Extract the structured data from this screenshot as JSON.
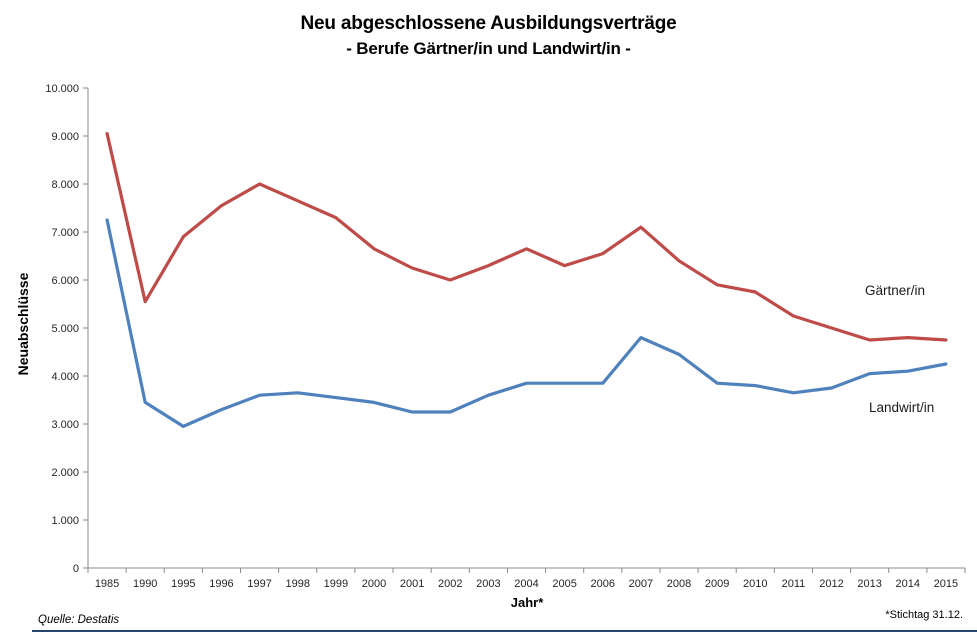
{
  "page": {
    "source": "Quelle: Destatis",
    "footnote": "*Stichtag 31.12."
  },
  "chart_data": {
    "type": "line",
    "title": "Neu abgeschlossene Ausbildungsverträge",
    "subtitle": "- Berufe Gärtner/in und Landwirt/in -",
    "xlabel": "Jahr*",
    "ylabel": "Neuabschlüsse",
    "ylim": [
      0,
      10000
    ],
    "ytick_step": 1000,
    "ytick_labels": [
      "0",
      "1.000",
      "2.000",
      "3.000",
      "4.000",
      "5.000",
      "6.000",
      "7.000",
      "8.000",
      "9.000",
      "10.000"
    ],
    "grid": false,
    "legend_position": "inline-right-of-lines",
    "axis_color": "#8a8a8a",
    "categories": [
      "1985",
      "1990",
      "1995",
      "1996",
      "1997",
      "1998",
      "1999",
      "2000",
      "2001",
      "2002",
      "2003",
      "2004",
      "2005",
      "2006",
      "2007",
      "2008",
      "2009",
      "2010",
      "2011",
      "2012",
      "2013",
      "2014",
      "2015"
    ],
    "series": [
      {
        "name": "Gärtner/in",
        "color": "#be4b48",
        "values": [
          9050,
          5550,
          6900,
          7550,
          8000,
          7650,
          7300,
          6650,
          6250,
          6000,
          6300,
          6650,
          6300,
          6550,
          7100,
          6400,
          5900,
          5750,
          5250,
          5000,
          4750,
          4800,
          4750
        ]
      },
      {
        "name": "Landwirt/in",
        "color": "#4f81bd",
        "values": [
          7250,
          3450,
          2950,
          3300,
          3600,
          3650,
          3550,
          3450,
          3250,
          3250,
          3600,
          3850,
          3850,
          3850,
          4800,
          4450,
          3850,
          3800,
          3650,
          3750,
          4050,
          4100,
          4250
        ]
      }
    ]
  }
}
